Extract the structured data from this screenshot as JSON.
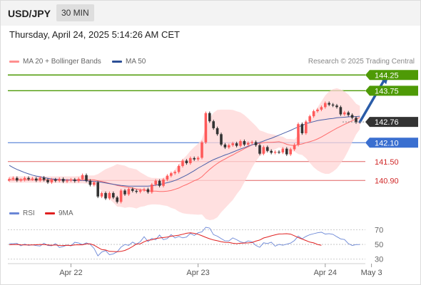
{
  "header": {
    "symbol": "USD/JPY",
    "timeframe": "30 MIN",
    "datetime": "Thursday, April 24, 2025 5:14:26 AM CET"
  },
  "legend": {
    "ma20_label": "MA 20 + Bollinger Bands",
    "ma50_label": "MA 50",
    "credit": "Research © 2025 Trading Central",
    "rsi_label": "RSI",
    "rsi_ma_label": "9MA"
  },
  "colors": {
    "up": "#ff5a5a",
    "down": "#333333",
    "ma20": "#ff6a6a",
    "bollinger_fill": "#ffd6d6",
    "ma50": "#4a5fa8",
    "resistance": "#4e9a06",
    "support": "#e06060",
    "pivot": "#3a6fd0",
    "arrow": "#2a5ca8",
    "last_price": "#333333",
    "rsi": "#6a86d6",
    "rsi_ma": "#e02020"
  },
  "chart_data": [
    {
      "type": "candlestick",
      "title": "USD/JPY 30 MIN",
      "ylim": [
        140.25,
        144.55
      ],
      "x_ticks": [
        {
          "label": "Apr 22",
          "index": 16
        },
        {
          "label": "Apr 23",
          "index": 49
        },
        {
          "label": "Apr 24",
          "index": 82
        },
        {
          "label": "May 3",
          "index": 94
        }
      ],
      "levels": [
        {
          "name": "resistance-2",
          "value": 144.25,
          "label": "144.25",
          "kind": "resistance"
        },
        {
          "name": "resistance-1",
          "value": 143.75,
          "label": "143.75",
          "kind": "resistance"
        },
        {
          "name": "last-price",
          "value": 142.76,
          "label": "142.76",
          "kind": "last"
        },
        {
          "name": "pivot",
          "value": 142.1,
          "label": "142.10",
          "kind": "pivot"
        },
        {
          "name": "support-1",
          "value": 141.5,
          "label": "141.50",
          "kind": "support"
        },
        {
          "name": "support-2",
          "value": 140.9,
          "label": "140.90",
          "kind": "support"
        }
      ],
      "forecast_arrow": {
        "from_index": 91,
        "from_value": 142.76,
        "to_index": 98,
        "to_value": 144.25
      },
      "close": [
        140.95,
        140.98,
        140.9,
        140.92,
        140.98,
        140.94,
        140.96,
        140.9,
        140.99,
        140.92,
        140.84,
        140.93,
        140.89,
        140.95,
        140.87,
        140.9,
        140.93,
        140.88,
        140.95,
        141.07,
        140.89,
        140.76,
        140.84,
        140.39,
        140.5,
        140.33,
        140.5,
        140.36,
        140.22,
        140.58,
        140.46,
        140.63,
        140.57,
        140.54,
        140.59,
        140.62,
        140.53,
        140.77,
        140.89,
        140.73,
        140.93,
        141.05,
        141.13,
        141.17,
        141.36,
        141.53,
        141.45,
        141.61,
        141.57,
        141.62,
        142.11,
        143.04,
        142.78,
        142.56,
        142.37,
        142.04,
        141.95,
        142.02,
        142.08,
        142.0,
        142.15,
        142.04,
        142.09,
        142.12,
        142.02,
        141.75,
        141.96,
        141.84,
        141.78,
        141.81,
        141.79,
        141.91,
        141.73,
        141.89,
        142.03,
        142.69,
        142.4,
        142.77,
        142.94,
        143.1,
        143.15,
        143.23,
        143.36,
        143.31,
        143.28,
        143.23,
        143.0,
        143.06,
        142.98,
        142.89,
        142.75,
        142.76
      ],
      "ma20": [
        140.93,
        140.93,
        140.93,
        140.93,
        140.93,
        140.93,
        140.93,
        140.93,
        140.93,
        140.93,
        140.92,
        140.92,
        140.92,
        140.92,
        140.92,
        140.92,
        140.92,
        140.92,
        140.92,
        140.93,
        140.93,
        140.92,
        140.92,
        140.89,
        140.87,
        140.84,
        140.81,
        140.78,
        140.74,
        140.72,
        140.7,
        140.68,
        140.66,
        140.63,
        140.61,
        140.59,
        140.57,
        140.56,
        140.56,
        140.55,
        140.55,
        140.56,
        140.58,
        140.62,
        140.66,
        140.72,
        140.77,
        140.83,
        140.89,
        140.94,
        141.02,
        141.14,
        141.25,
        141.35,
        141.44,
        141.52,
        141.58,
        141.65,
        141.71,
        141.78,
        141.84,
        141.91,
        141.97,
        142.03,
        142.07,
        142.08,
        142.1,
        142.11,
        142.11,
        142.12,
        142.13,
        142.1,
        142.05,
        142.02,
        142.01,
        142.04,
        142.06,
        142.1,
        142.13,
        142.17,
        142.22,
        142.28,
        142.35,
        142.42,
        142.49,
        142.56,
        142.62,
        142.68,
        142.74,
        142.8,
        142.85,
        142.9
      ],
      "bollinger_upper": [
        141.03,
        141.03,
        141.03,
        141.03,
        141.03,
        141.03,
        141.03,
        141.03,
        141.03,
        141.03,
        141.03,
        141.03,
        141.03,
        141.03,
        141.03,
        141.03,
        141.03,
        141.03,
        141.04,
        141.06,
        141.06,
        141.06,
        141.06,
        141.1,
        141.18,
        141.26,
        141.31,
        141.36,
        141.42,
        141.39,
        141.37,
        141.31,
        141.28,
        141.25,
        141.16,
        141.09,
        141.02,
        140.98,
        140.98,
        140.97,
        140.98,
        141.03,
        141.12,
        141.25,
        141.41,
        141.57,
        141.69,
        141.84,
        141.96,
        142.07,
        142.22,
        142.6,
        142.87,
        143.05,
        143.14,
        143.15,
        143.15,
        143.15,
        143.14,
        143.1,
        143.06,
        142.98,
        142.87,
        142.75,
        142.63,
        142.49,
        142.45,
        142.4,
        142.37,
        142.35,
        142.31,
        142.29,
        142.22,
        142.22,
        142.2,
        142.34,
        142.41,
        142.59,
        142.8,
        143.02,
        143.22,
        143.41,
        143.6,
        143.73,
        143.8,
        143.83,
        143.79,
        143.73,
        143.63,
        143.49,
        143.34,
        143.27
      ],
      "bollinger_lower": [
        140.83,
        140.83,
        140.83,
        140.83,
        140.83,
        140.83,
        140.83,
        140.83,
        140.83,
        140.83,
        140.82,
        140.82,
        140.82,
        140.82,
        140.81,
        140.81,
        140.81,
        140.81,
        140.81,
        140.81,
        140.8,
        140.79,
        140.78,
        140.68,
        140.56,
        140.43,
        140.31,
        140.2,
        140.07,
        140.06,
        140.03,
        140.05,
        140.04,
        140.01,
        140.06,
        140.08,
        140.12,
        140.14,
        140.14,
        140.13,
        140.11,
        140.09,
        140.03,
        139.99,
        139.91,
        139.86,
        139.84,
        139.83,
        139.82,
        139.81,
        139.82,
        139.68,
        139.64,
        139.66,
        139.73,
        139.89,
        140.02,
        140.15,
        140.28,
        140.46,
        140.62,
        140.84,
        141.07,
        141.31,
        141.51,
        141.67,
        141.75,
        141.82,
        141.85,
        141.89,
        141.95,
        141.91,
        141.88,
        141.82,
        141.82,
        141.74,
        141.71,
        141.61,
        141.46,
        141.32,
        141.22,
        141.15,
        141.11,
        141.11,
        141.18,
        141.28,
        141.44,
        141.62,
        141.85,
        142.11,
        142.36,
        142.53
      ],
      "ma50": [
        141.38,
        141.31,
        141.25,
        141.2,
        141.15,
        141.11,
        141.07,
        141.04,
        141.02,
        140.99,
        140.97,
        140.95,
        140.94,
        140.93,
        140.92,
        140.91,
        140.91,
        140.9,
        140.9,
        140.9,
        140.89,
        140.88,
        140.87,
        140.86,
        140.84,
        140.82,
        140.8,
        140.78,
        140.76,
        140.74,
        140.73,
        140.72,
        140.72,
        140.72,
        140.72,
        140.72,
        140.72,
        140.73,
        140.75,
        140.77,
        140.8,
        140.83,
        140.86,
        140.9,
        140.95,
        141.01,
        141.07,
        141.14,
        141.21,
        141.29,
        141.36,
        141.43,
        141.5,
        141.56,
        141.61,
        141.66,
        141.71,
        141.75,
        141.8,
        141.85,
        141.9,
        141.94,
        141.99,
        142.03,
        142.07,
        142.11,
        142.15,
        142.2,
        142.24,
        142.29,
        142.34,
        142.39,
        142.44,
        142.49,
        142.55,
        142.6,
        142.65,
        142.7,
        142.74,
        142.77,
        142.8,
        142.82,
        142.84,
        142.86,
        142.87,
        142.89,
        142.9,
        142.91,
        142.92,
        142.93,
        142.93,
        142.94
      ]
    },
    {
      "type": "line",
      "title": "RSI",
      "ylim": [
        22,
        82
      ],
      "y_ticks": [
        70,
        50,
        30
      ],
      "series": [
        {
          "name": "RSI",
          "values": [
            51.1,
            50.9,
            51.4,
            48.1,
            50.5,
            48.7,
            49.5,
            48.4,
            47.8,
            51.6,
            48.6,
            48.2,
            51.1,
            45.9,
            47.3,
            49.2,
            48.0,
            53.0,
            51.9,
            49.8,
            52.1,
            50.1,
            44.6,
            34.5,
            39.7,
            41.6,
            36.0,
            37.2,
            40.0,
            46.4,
            50.0,
            48.7,
            53.2,
            50.3,
            53.7,
            60.5,
            53.8,
            58.3,
            56.3,
            62.8,
            56.5,
            57.9,
            63.4,
            58.8,
            60.9,
            59.0,
            60.0,
            65.1,
            62.2,
            65.8,
            67.0,
            73.3,
            72.2,
            63.3,
            61.2,
            57.9,
            54.8,
            54.8,
            58.9,
            56.5,
            53.5,
            52.2,
            54.8,
            53.5,
            48.6,
            46.1,
            52.2,
            51.2,
            53.1,
            47.6,
            50.1,
            48.9,
            50.4,
            51.8,
            55.3,
            61.4,
            57.7,
            60.9,
            63.2,
            64.6,
            65.8,
            66.6,
            64.1,
            64.7,
            63.7,
            60.5,
            57.5,
            56.6,
            51.1,
            48.6,
            49.8,
            49.9
          ]
        },
        {
          "name": "9MA",
          "values": [
            49.6,
            49.9,
            50.0,
            49.5,
            49.3,
            49.3,
            49.3,
            49.6,
            50.0,
            49.9,
            49.4,
            48.9,
            49.3,
            48.6,
            48.5,
            48.9,
            48.6,
            49.4,
            49.6,
            49.5,
            50.7,
            50.8,
            49.0,
            45.9,
            43.0,
            42.4,
            40.6,
            40.4,
            40.2,
            40.6,
            41.8,
            44.2,
            47.2,
            50.6,
            50.8,
            53.6,
            55.8,
            56.3,
            58.1,
            58.8,
            59.4,
            60.0,
            61.2,
            61.8,
            62.5,
            63.8,
            65.2,
            65.7,
            65.1,
            63.8,
            61.8,
            59.6,
            57.7,
            56.1,
            55.0,
            53.7,
            52.9,
            52.7,
            51.6,
            51.0,
            51.6,
            51.9,
            52.1,
            52.6,
            54.5,
            56.0,
            58.8,
            60.1,
            61.7,
            63.0,
            64.2,
            64.3,
            64.6,
            64.0,
            61.8,
            59.4,
            57.3,
            55.3,
            53.2,
            52.1,
            50.0,
            48.8
          ]
        }
      ]
    }
  ]
}
